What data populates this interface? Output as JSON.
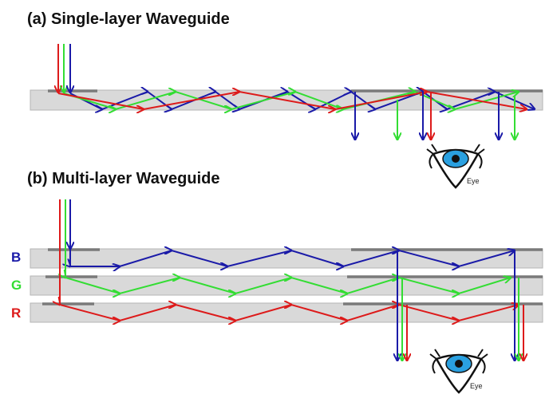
{
  "panel_a": {
    "title": "(a) Single-layer Waveguide",
    "eye": "Eye"
  },
  "panel_b": {
    "title": "(b) Multi-layer Waveguide",
    "layers": [
      "B",
      "G",
      "R"
    ],
    "eye": "Eye"
  }
}
